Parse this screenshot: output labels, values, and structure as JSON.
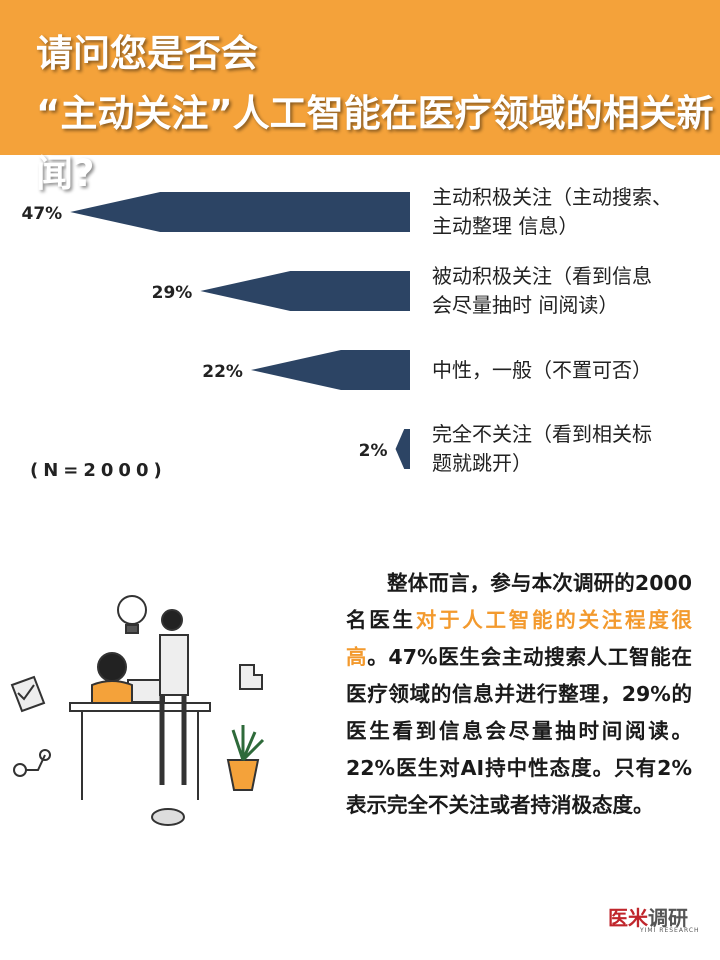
{
  "chart_data": {
    "type": "bar",
    "orientation": "horizontal",
    "title": "请问您是否会\n“主动关注”人工智能在医疗领域的相关新闻?",
    "categories": [
      "主动积极关注（主动搜索、\n主动整理 信息）",
      "被动积极关注（看到信息\n会尽量抽时 间阅读）",
      "中性，一般（不置可否）",
      "完全不关注（看到相关标\n题就跳开）"
    ],
    "values": [
      47,
      29,
      22,
      2
    ],
    "value_labels": [
      "47%",
      "29%",
      "22%",
      "2%"
    ],
    "color": "#2c4464",
    "note": "(N=2000)"
  },
  "summary": {
    "parts": [
      "整体而言，参与本次调研的2000名医生",
      "对于人工智能的关注程度很高",
      "。47%医生会主动搜索人工智能在医疗领域的信息并进行整理，29%的医生看到信息会尽量抽时间阅读。22%医生对AI持中性态度。只有2%表示完全不关注或者持消极态度。"
    ]
  },
  "logo": {
    "name_a": "医米",
    "name_b": "调研",
    "sub": "YIMI RESEARCH"
  }
}
